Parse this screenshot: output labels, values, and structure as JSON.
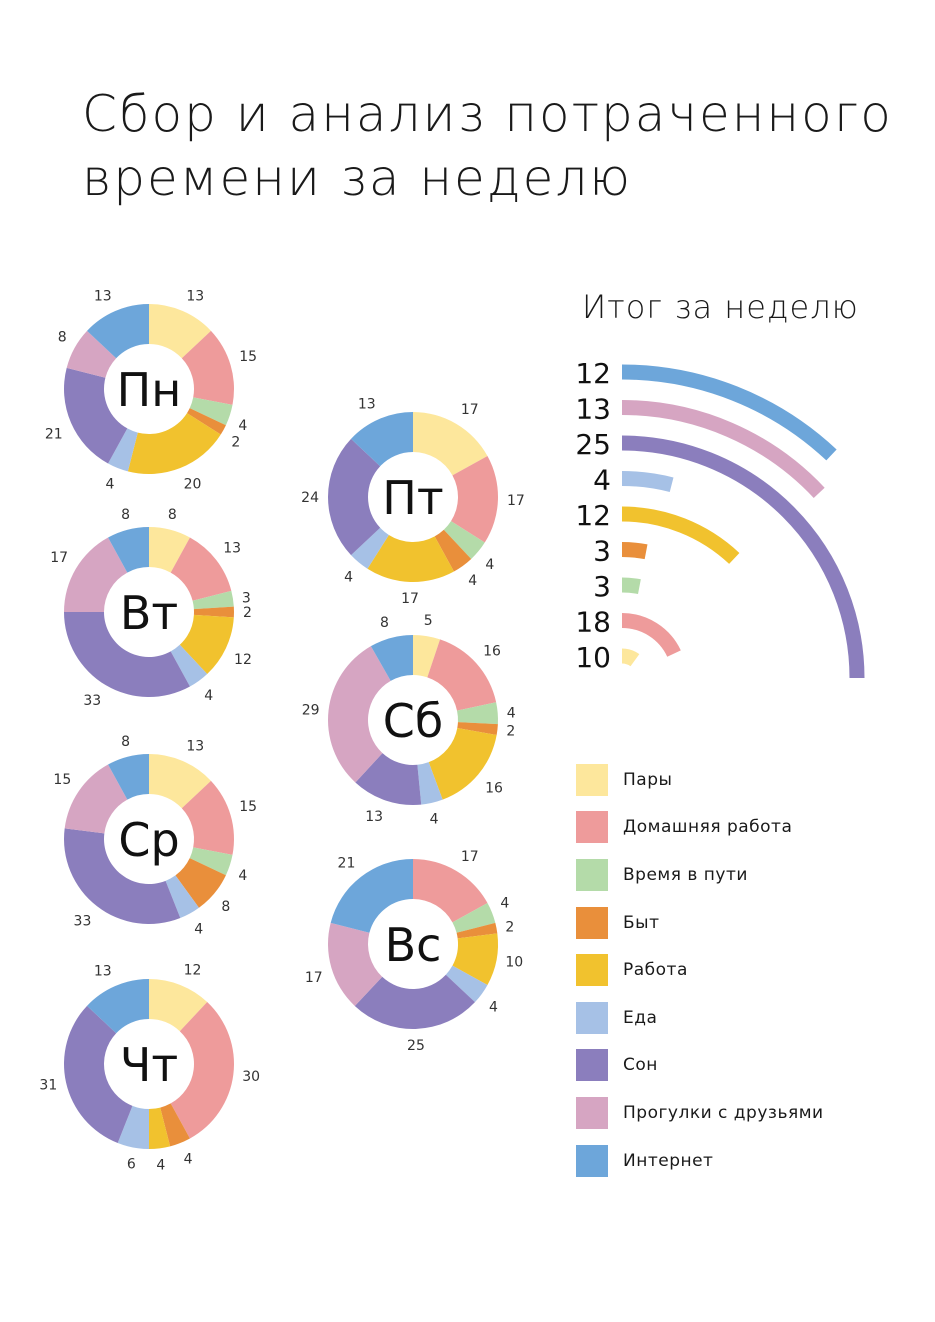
{
  "title": {
    "line1": "Сбор и анализ потраченного",
    "line2": "времени за неделю"
  },
  "categories": [
    "Пары",
    "Домашняя работа",
    "Время в пути",
    "Быт",
    "Работа",
    "Еда",
    "Сон",
    "Прогулки с друзьями",
    "Интернет"
  ],
  "colors": [
    "#fde79c",
    "#ee9b9b",
    "#b4dba9",
    "#e98f3b",
    "#f1c22e",
    "#a6c1e6",
    "#8b7ebd",
    "#d6a5c2",
    "#6da6da"
  ],
  "chart_data": [
    {
      "type": "pie",
      "variant": "donut",
      "title": "Пн",
      "categories": [
        "Пары",
        "Домашняя работа",
        "Время в пути",
        "Быт",
        "Работа",
        "Еда",
        "Сон",
        "Прогулки с друзьями",
        "Интернет"
      ],
      "values": [
        13,
        15,
        4,
        2,
        20,
        4,
        21,
        8,
        13
      ]
    },
    {
      "type": "pie",
      "variant": "donut",
      "title": "Вт",
      "categories": [
        "Пары",
        "Домашняя работа",
        "Время в пути",
        "Быт",
        "Работа",
        "Еда",
        "Сон",
        "Прогулки с друзьями",
        "Интернет"
      ],
      "values": [
        8,
        13,
        3,
        2,
        12,
        4,
        33,
        17,
        8
      ]
    },
    {
      "type": "pie",
      "variant": "donut",
      "title": "Ср",
      "categories": [
        "Пары",
        "Домашняя работа",
        "Время в пути",
        "Быт",
        "Работа",
        "Еда",
        "Сон",
        "Прогулки с друзьями",
        "Интернет"
      ],
      "values": [
        13,
        15,
        4,
        8,
        0,
        4,
        33,
        15,
        8
      ]
    },
    {
      "type": "pie",
      "variant": "donut",
      "title": "Чт",
      "categories": [
        "Пары",
        "Домашняя работа",
        "Время в пути",
        "Быт",
        "Работа",
        "Еда",
        "Сон",
        "Прогулки с друзьями",
        "Интернет"
      ],
      "values": [
        12,
        30,
        0,
        4,
        4,
        6,
        31,
        0,
        13
      ]
    },
    {
      "type": "pie",
      "variant": "donut",
      "title": "Пт",
      "categories": [
        "Пары",
        "Домашняя работа",
        "Время в пути",
        "Быт",
        "Работа",
        "Еда",
        "Сон",
        "Прогулки с друзьями",
        "Интернет"
      ],
      "values": [
        17,
        17,
        4,
        4,
        17,
        4,
        24,
        0,
        13
      ]
    },
    {
      "type": "pie",
      "variant": "donut",
      "title": "Сб",
      "categories": [
        "Пары",
        "Домашняя работа",
        "Время в пути",
        "Быт",
        "Работа",
        "Еда",
        "Сон",
        "Прогулки с друзьями",
        "Интернет"
      ],
      "values": [
        5,
        16,
        4,
        2,
        16,
        4,
        13,
        29,
        8
      ]
    },
    {
      "type": "pie",
      "variant": "donut",
      "title": "Вс",
      "categories": [
        "Пары",
        "Домашняя работа",
        "Время в пути",
        "Быт",
        "Работа",
        "Еда",
        "Сон",
        "Прогулки с друзьями",
        "Интернет"
      ],
      "values": [
        0,
        17,
        4,
        2,
        10,
        4,
        25,
        17,
        21
      ]
    },
    {
      "type": "bar",
      "variant": "radial",
      "title": "Итог за неделю",
      "categories": [
        "Интернет",
        "Прогулки с друзьями",
        "Сон",
        "Еда",
        "Работа",
        "Быт",
        "Время в пути",
        "Домашняя работа",
        "Пары"
      ],
      "values": [
        12,
        13,
        25,
        4,
        12,
        3,
        3,
        18,
        10
      ]
    }
  ]
}
